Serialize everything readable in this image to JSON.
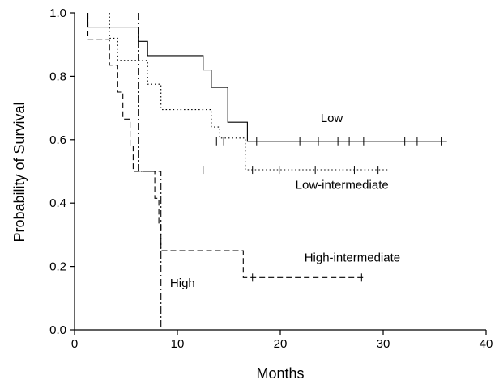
{
  "chart_data": {
    "type": "line",
    "step": true,
    "title": "",
    "xlabel": "Months",
    "ylabel": "Probability of Survival",
    "xlim": [
      0,
      40
    ],
    "ylim": [
      0,
      1.0
    ],
    "xticks": [
      0,
      10,
      20,
      30,
      40
    ],
    "yticks": [
      0.0,
      0.2,
      0.4,
      0.6,
      0.8,
      1.0
    ],
    "ytick_labels": [
      "0.0",
      "0.2",
      "0.4",
      "0.6",
      "0.8",
      "1.0"
    ],
    "grid": false,
    "legend": "inline labels",
    "series": [
      {
        "name": "Low",
        "line_style": "solid",
        "x": [
          1.3,
          1.3,
          6.2,
          6.2,
          7.1,
          7.1,
          12.5,
          12.5,
          13.3,
          13.3,
          14.9,
          14.9,
          16.8,
          16.8,
          36.2
        ],
        "y": [
          1.0,
          0.955,
          0.955,
          0.91,
          0.91,
          0.865,
          0.865,
          0.82,
          0.82,
          0.765,
          0.765,
          0.655,
          0.655,
          0.595,
          0.595
        ],
        "censored_x": [
          13.8,
          14.5,
          17.7,
          21.9,
          23.7,
          25.6,
          26.7,
          28.1,
          32.1,
          33.3,
          35.7
        ],
        "censored_y": 0.595
      },
      {
        "name": "Low-intermediate",
        "line_style": "dotted",
        "x": [
          3.4,
          3.4,
          4.2,
          4.2,
          7.1,
          7.1,
          8.4,
          8.4,
          13.3,
          13.3,
          14.1,
          14.1,
          16.6,
          16.6,
          30.7
        ],
        "y": [
          1.0,
          0.92,
          0.92,
          0.85,
          0.85,
          0.775,
          0.775,
          0.695,
          0.695,
          0.64,
          0.64,
          0.605,
          0.605,
          0.505,
          0.505
        ],
        "censored_x": [
          12.5,
          17.3,
          19.9,
          23.4,
          27.2,
          29.5
        ],
        "censored_y": 0.505
      },
      {
        "name": "High-intermediate",
        "line_style": "dashed",
        "x": [
          1.3,
          1.3,
          3.4,
          3.4,
          4.2,
          4.2,
          4.7,
          4.7,
          5.4,
          5.4,
          5.7,
          5.7,
          5.9,
          5.9,
          7.8,
          7.8,
          8.2,
          8.2,
          8.4,
          8.4,
          8.7,
          8.7,
          16.4,
          16.4,
          28.2
        ],
        "y": [
          1.0,
          0.915,
          0.915,
          0.835,
          0.835,
          0.75,
          0.75,
          0.665,
          0.665,
          0.58,
          0.58,
          0.5,
          0.5,
          0.5,
          0.5,
          0.415,
          0.415,
          0.335,
          0.335,
          0.25,
          0.25,
          0.25,
          0.25,
          0.165,
          0.165
        ],
        "censored_x": [
          17.3,
          27.9
        ],
        "censored_y": 0.165
      },
      {
        "name": "High",
        "line_style": "dashdot",
        "x": [
          6.2,
          6.2,
          8.4,
          8.4
        ],
        "y": [
          1.0,
          0.5,
          0.5,
          0.0
        ],
        "censored_x": [],
        "censored_y": null
      }
    ],
    "series_labels": [
      {
        "text": "Low",
        "x": 25.0,
        "y": 0.655
      },
      {
        "text": "Low-intermediate",
        "x": 26.0,
        "y": 0.445
      },
      {
        "text": "High-intermediate",
        "x": 27.0,
        "y": 0.215
      },
      {
        "text": "High",
        "x": 10.5,
        "y": 0.135
      }
    ]
  }
}
